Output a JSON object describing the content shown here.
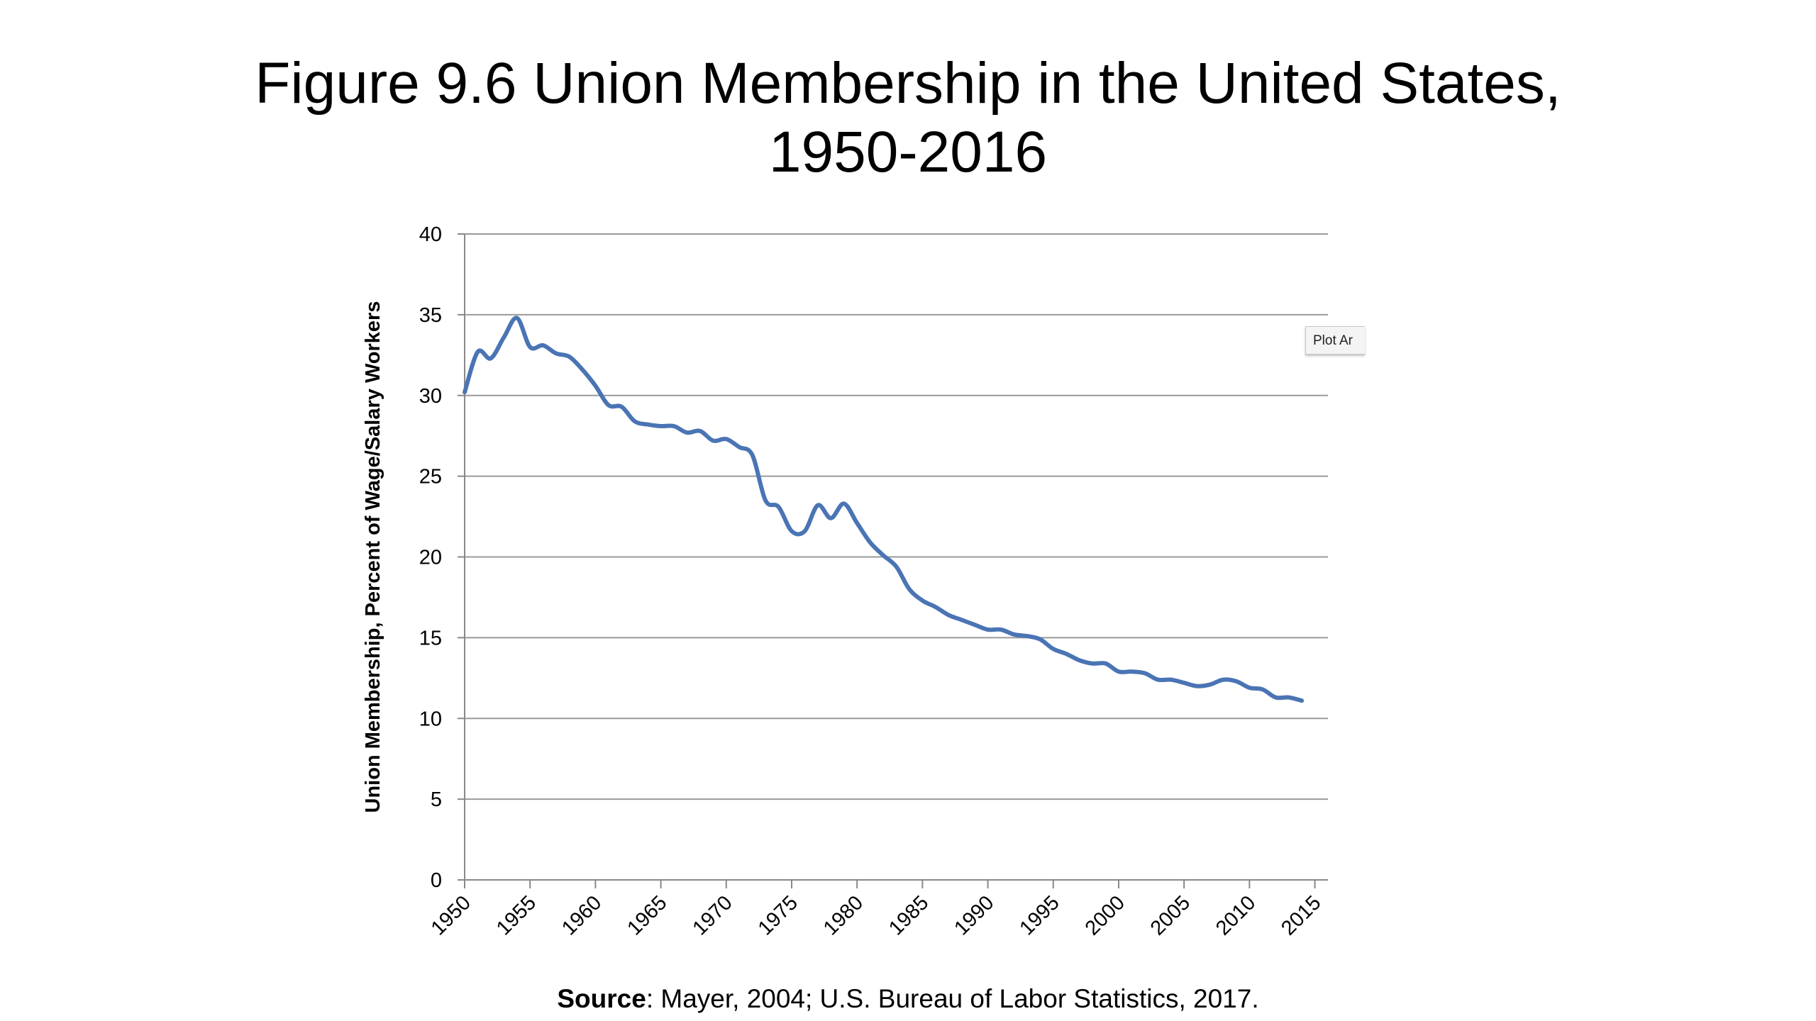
{
  "title": {
    "line1": "Figure 9.6 Union Membership in the United States,",
    "line2": "1950-2016"
  },
  "source": {
    "label": "Source",
    "text": ": Mayer, 2004; U.S. Bureau of Labor Statistics, 2017."
  },
  "tooltip": {
    "text": "Plot Ar"
  },
  "colors": {
    "line": "#4a74b4",
    "grid": "#9a9a9a",
    "axis": "#888888"
  },
  "chart_data": {
    "type": "line",
    "title": "Figure 9.6 Union Membership in the United States, 1950-2016",
    "xlabel": "",
    "ylabel": "Union Membership, Percent of Wage/Salary Workers",
    "xlim": [
      1950,
      2015
    ],
    "ylim": [
      0,
      40
    ],
    "grid": true,
    "yticks": [
      0,
      5,
      10,
      15,
      20,
      25,
      30,
      35,
      40
    ],
    "xticks": [
      1950,
      1955,
      1960,
      1965,
      1970,
      1975,
      1980,
      1985,
      1990,
      1995,
      2000,
      2005,
      2010,
      2015
    ],
    "x": [
      1950,
      1951,
      1952,
      1953,
      1954,
      1955,
      1956,
      1957,
      1958,
      1959,
      1960,
      1961,
      1962,
      1963,
      1964,
      1965,
      1966,
      1967,
      1968,
      1969,
      1970,
      1971,
      1972,
      1973,
      1974,
      1975,
      1976,
      1977,
      1978,
      1979,
      1980,
      1981,
      1982,
      1983,
      1984,
      1985,
      1986,
      1987,
      1988,
      1989,
      1990,
      1991,
      1992,
      1993,
      1994,
      1995,
      1996,
      1997,
      1998,
      1999,
      2000,
      2001,
      2002,
      2003,
      2004,
      2005,
      2006,
      2007,
      2008,
      2009,
      2010,
      2011,
      2012,
      2013,
      2014
    ],
    "values": [
      30.2,
      32.7,
      32.3,
      33.6,
      34.8,
      33.0,
      33.1,
      32.6,
      32.4,
      31.6,
      30.6,
      29.4,
      29.3,
      28.4,
      28.2,
      28.1,
      28.1,
      27.7,
      27.8,
      27.2,
      27.3,
      26.8,
      26.3,
      23.5,
      23.1,
      21.6,
      21.6,
      23.2,
      22.4,
      23.3,
      22.1,
      20.9,
      20.1,
      19.4,
      18.0,
      17.3,
      16.9,
      16.4,
      16.1,
      15.8,
      15.5,
      15.5,
      15.2,
      15.1,
      14.9,
      14.3,
      14.0,
      13.6,
      13.4,
      13.4,
      12.9,
      12.9,
      12.8,
      12.4,
      12.4,
      12.2,
      12.0,
      12.1,
      12.4,
      12.3,
      11.9,
      11.8,
      11.3,
      11.3,
      11.1
    ]
  }
}
